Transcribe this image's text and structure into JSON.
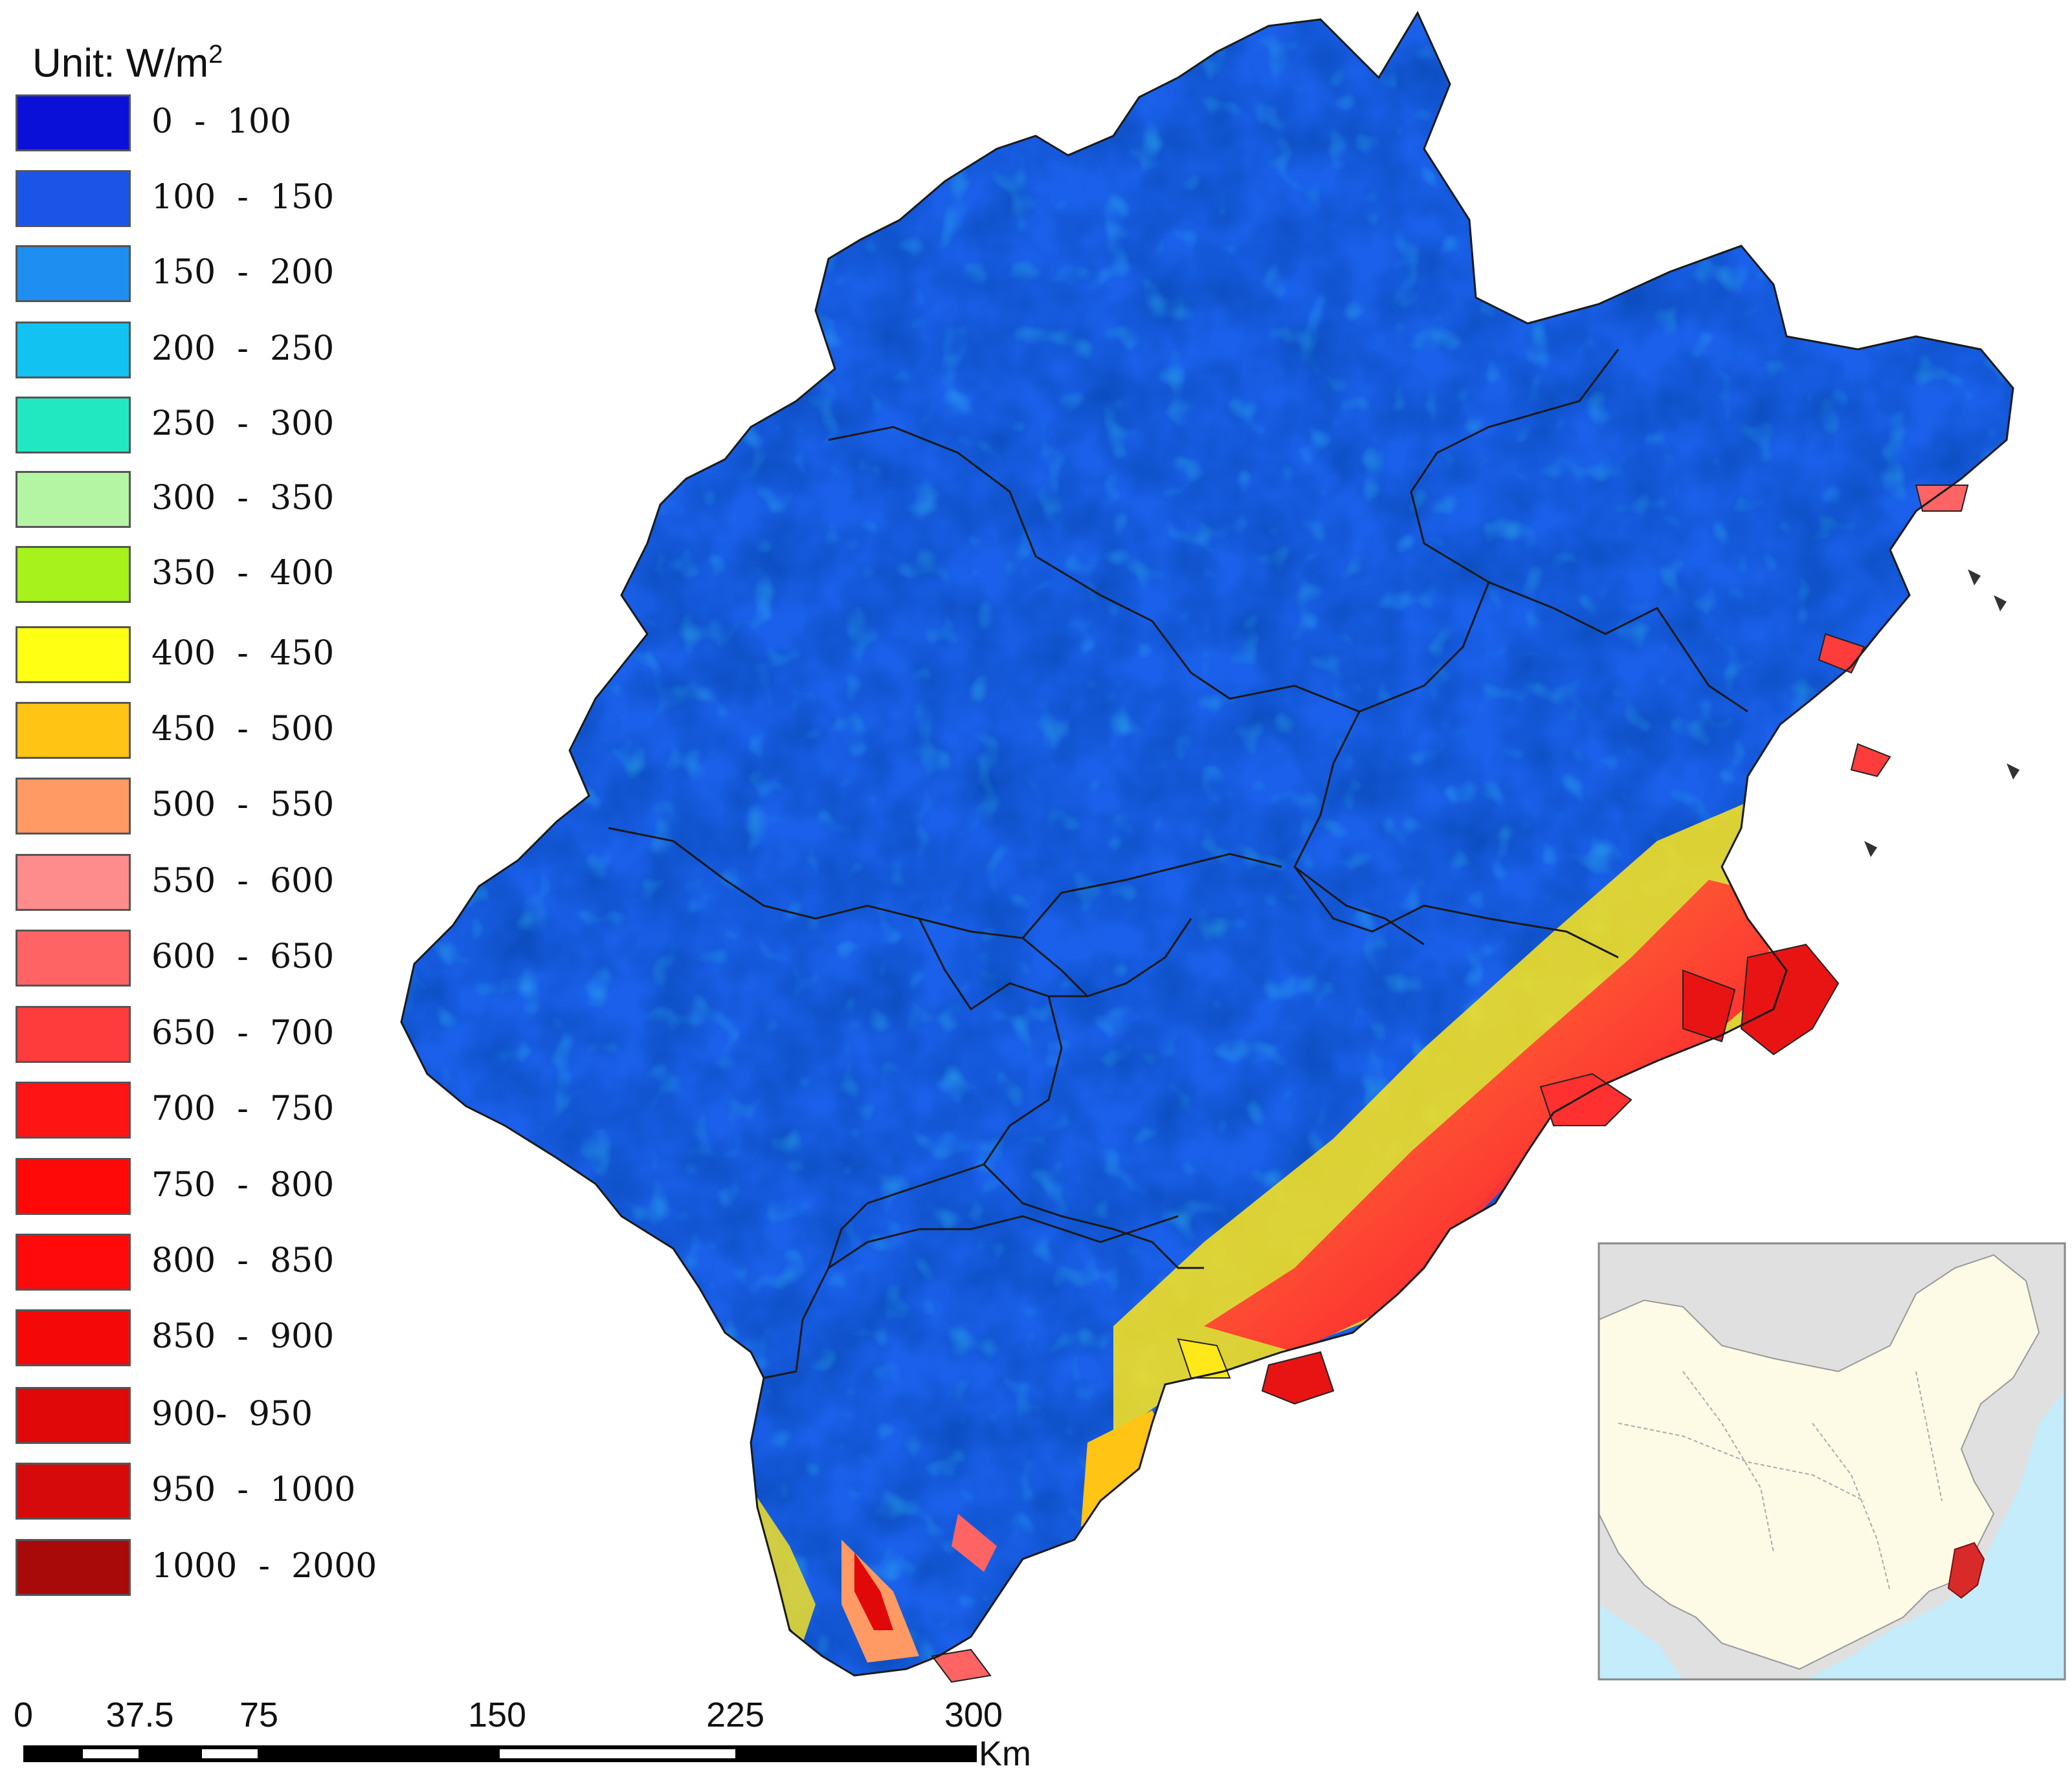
{
  "legend": {
    "unit_prefix": "Unit: W/m",
    "unit_exponent": "2",
    "classes": [
      {
        "label": "0  -  100",
        "color": "#0a10d8"
      },
      {
        "label": "100  -  150",
        "color": "#1a55e8"
      },
      {
        "label": "150  -  200",
        "color": "#1e8ef0"
      },
      {
        "label": "200  -  250",
        "color": "#12c3f2"
      },
      {
        "label": "250  -  300",
        "color": "#22e8c2"
      },
      {
        "label": "300  -  350",
        "color": "#b4f5a4"
      },
      {
        "label": "350  -  400",
        "color": "#a6f21a"
      },
      {
        "label": "400  -  450",
        "color": "#ffff14"
      },
      {
        "label": "450  -  500",
        "color": "#ffc414"
      },
      {
        "label": "500  -  550",
        "color": "#ff9a64"
      },
      {
        "label": "550  -  600",
        "color": "#ff8c8c"
      },
      {
        "label": "600  -  650",
        "color": "#ff6464"
      },
      {
        "label": "650  -  700",
        "color": "#ff3c3c"
      },
      {
        "label": "700  -  750",
        "color": "#ff1414"
      },
      {
        "label": "750  -  800",
        "color": "#ff0808"
      },
      {
        "label": "800  -  850",
        "color": "#ff0a0a"
      },
      {
        "label": "850  -  900",
        "color": "#f50808"
      },
      {
        "label": "900-  950",
        "color": "#e00808"
      },
      {
        "label": "950  -  1000",
        "color": "#d60a0a"
      },
      {
        "label": "1000  -  2000",
        "color": "#a80a0a"
      }
    ]
  },
  "scalebar": {
    "ticks": [
      "0",
      "37.5",
      "75",
      "150",
      "225",
      "300"
    ],
    "unit": "Km"
  },
  "inset": {
    "highlight_color": "#d92a2a",
    "land_color": "#fdfbe6",
    "sea_color": "#c4ecfa"
  }
}
